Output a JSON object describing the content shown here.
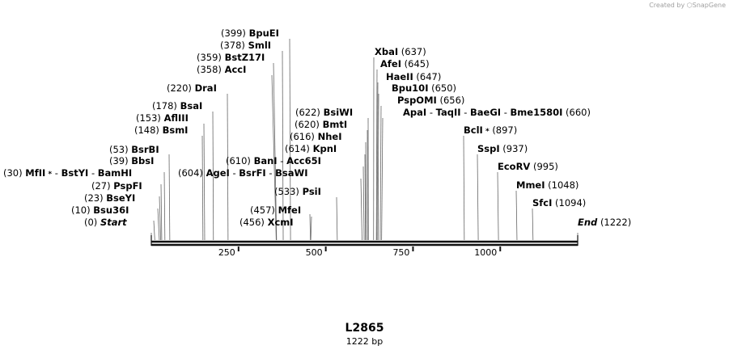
{
  "credit": "Created by ⬡SnapGene",
  "map": {
    "name": "L2865",
    "length_label": "1222 bp",
    "length": 1222,
    "ruler_ticks": [
      "250",
      "500",
      "750",
      "1000"
    ],
    "ruler_values": [
      250,
      500,
      750,
      1000
    ]
  },
  "sites": [
    {
      "pos": 0,
      "pos_text": "(0)",
      "parts": [
        {
          "name": "Start",
          "italic": true
        }
      ]
    },
    {
      "pos": 10,
      "pos_text": "(10)",
      "parts": [
        {
          "name": "Bsu36I"
        }
      ]
    },
    {
      "pos": 23,
      "pos_text": "(23)",
      "parts": [
        {
          "name": "BseYI"
        }
      ]
    },
    {
      "pos": 27,
      "pos_text": "(27)",
      "parts": [
        {
          "name": "PspFI"
        }
      ]
    },
    {
      "pos": 30,
      "pos_text": "(30)",
      "parts": [
        {
          "name": "MfII",
          "star": true
        },
        {
          "name": "BstYI"
        },
        {
          "name": "BamHI"
        }
      ]
    },
    {
      "pos": 39,
      "pos_text": "(39)",
      "parts": [
        {
          "name": "BbsI"
        }
      ]
    },
    {
      "pos": 53,
      "pos_text": "(53)",
      "parts": [
        {
          "name": "BsrBI"
        }
      ]
    },
    {
      "pos": 148,
      "pos_text": "(148)",
      "parts": [
        {
          "name": "BsmI"
        }
      ]
    },
    {
      "pos": 153,
      "pos_text": "(153)",
      "parts": [
        {
          "name": "AflIII"
        }
      ]
    },
    {
      "pos": 178,
      "pos_text": "(178)",
      "parts": [
        {
          "name": "BsaI"
        }
      ]
    },
    {
      "pos": 220,
      "pos_text": "(220)",
      "parts": [
        {
          "name": "DraI"
        }
      ]
    },
    {
      "pos": 358,
      "pos_text": "(358)",
      "parts": [
        {
          "name": "AccI"
        }
      ]
    },
    {
      "pos": 359,
      "pos_text": "(359)",
      "parts": [
        {
          "name": "BstZ17I"
        }
      ]
    },
    {
      "pos": 378,
      "pos_text": "(378)",
      "parts": [
        {
          "name": "SmlI"
        }
      ]
    },
    {
      "pos": 399,
      "pos_text": "(399)",
      "parts": [
        {
          "name": "BpuEI"
        }
      ]
    },
    {
      "pos": 456,
      "pos_text": "(456)",
      "parts": [
        {
          "name": "XcmI"
        }
      ]
    },
    {
      "pos": 457,
      "pos_text": "(457)",
      "parts": [
        {
          "name": "MfeI"
        }
      ]
    },
    {
      "pos": 533,
      "pos_text": "(533)",
      "parts": [
        {
          "name": "PsiI"
        }
      ]
    },
    {
      "pos": 604,
      "pos_text": "(604)",
      "parts": [
        {
          "name": "AgeI"
        },
        {
          "name": "BsrFI"
        },
        {
          "name": "BsaWI"
        }
      ]
    },
    {
      "pos": 610,
      "pos_text": "(610)",
      "parts": [
        {
          "name": "BanI"
        },
        {
          "name": "Acc65I"
        }
      ]
    },
    {
      "pos": 614,
      "pos_text": "(614)",
      "parts": [
        {
          "name": "KpnI"
        }
      ]
    },
    {
      "pos": 616,
      "pos_text": "(616)",
      "parts": [
        {
          "name": "NheI"
        }
      ]
    },
    {
      "pos": 620,
      "pos_text": "(620)",
      "parts": [
        {
          "name": "BmtI"
        }
      ]
    },
    {
      "pos": 622,
      "pos_text": "(622)",
      "parts": [
        {
          "name": "BsiWI"
        }
      ]
    },
    {
      "pos": 637,
      "pos_text": "(637)",
      "parts": [
        {
          "name": "XbaI"
        }
      ]
    },
    {
      "pos": 645,
      "pos_text": "(645)",
      "parts": [
        {
          "name": "AfeI"
        }
      ]
    },
    {
      "pos": 647,
      "pos_text": "(647)",
      "parts": [
        {
          "name": "HaeII"
        }
      ]
    },
    {
      "pos": 650,
      "pos_text": "(650)",
      "parts": [
        {
          "name": "Bpu10I"
        }
      ]
    },
    {
      "pos": 656,
      "pos_text": "(656)",
      "parts": [
        {
          "name": "PspOMI"
        }
      ]
    },
    {
      "pos": 660,
      "pos_text": "(660)",
      "parts": [
        {
          "name": "ApaI"
        },
        {
          "name": "TaqII"
        },
        {
          "name": "BaeGI"
        },
        {
          "name": "Bme1580I"
        }
      ]
    },
    {
      "pos": 897,
      "pos_text": "(897)",
      "parts": [
        {
          "name": "BclI",
          "star": true
        }
      ]
    },
    {
      "pos": 937,
      "pos_text": "(937)",
      "parts": [
        {
          "name": "SspI"
        }
      ]
    },
    {
      "pos": 995,
      "pos_text": "(995)",
      "parts": [
        {
          "name": "EcoRV"
        }
      ]
    },
    {
      "pos": 1048,
      "pos_text": "(1048)",
      "parts": [
        {
          "name": "MmeI"
        }
      ]
    },
    {
      "pos": 1094,
      "pos_text": "(1094)",
      "parts": [
        {
          "name": "SfcI"
        }
      ]
    },
    {
      "pos": 1222,
      "pos_text": "(1222)",
      "parts": [
        {
          "name": "End",
          "italic": true
        }
      ]
    }
  ]
}
